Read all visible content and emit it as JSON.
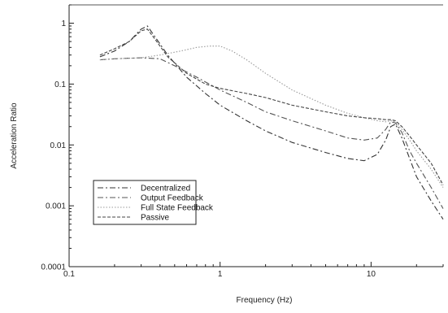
{
  "chart_data": {
    "type": "line",
    "title": "",
    "xlabel": "Frequency (Hz)",
    "ylabel": "Acceleration Ratio",
    "x_scale": "log",
    "y_scale": "log",
    "xlim": [
      0.1,
      30
    ],
    "ylim": [
      0.0001,
      2
    ],
    "x_ticks": [
      0.1,
      1,
      10
    ],
    "x_tick_labels": [
      "0.1",
      "1",
      "10"
    ],
    "y_ticks": [
      0.0001,
      0.001,
      0.01,
      0.1,
      1
    ],
    "y_tick_labels": [
      "0.0001",
      "0.001",
      "0.01",
      "0.1",
      "1"
    ],
    "grid": false,
    "legend_position": "lower-left",
    "series": [
      {
        "name": "Decentralized",
        "color": "#333333",
        "style": "dash-dot",
        "points": [
          [
            0.16,
            0.28
          ],
          [
            0.2,
            0.35
          ],
          [
            0.25,
            0.5
          ],
          [
            0.3,
            0.8
          ],
          [
            0.33,
            0.9
          ],
          [
            0.37,
            0.6
          ],
          [
            0.45,
            0.3
          ],
          [
            0.6,
            0.13
          ],
          [
            0.8,
            0.07
          ],
          [
            1.0,
            0.045
          ],
          [
            1.5,
            0.025
          ],
          [
            2,
            0.017
          ],
          [
            3,
            0.011
          ],
          [
            5,
            0.0075
          ],
          [
            7,
            0.006
          ],
          [
            9,
            0.0055
          ],
          [
            11,
            0.007
          ],
          [
            12.5,
            0.012
          ],
          [
            13.5,
            0.02
          ],
          [
            14.5,
            0.022
          ],
          [
            16,
            0.013
          ],
          [
            18,
            0.006
          ],
          [
            20,
            0.003
          ],
          [
            25,
            0.0012
          ],
          [
            30,
            0.0006
          ]
        ]
      },
      {
        "name": "Output Feedback",
        "color": "#555555",
        "style": "dash-dot",
        "points": [
          [
            0.16,
            0.25
          ],
          [
            0.2,
            0.26
          ],
          [
            0.3,
            0.27
          ],
          [
            0.4,
            0.26
          ],
          [
            0.5,
            0.2
          ],
          [
            0.7,
            0.13
          ],
          [
            1.0,
            0.08
          ],
          [
            1.5,
            0.05
          ],
          [
            2,
            0.035
          ],
          [
            3,
            0.025
          ],
          [
            5,
            0.017
          ],
          [
            7,
            0.013
          ],
          [
            9,
            0.012
          ],
          [
            11,
            0.013
          ],
          [
            12.5,
            0.018
          ],
          [
            13.5,
            0.024
          ],
          [
            14.5,
            0.023
          ],
          [
            16,
            0.016
          ],
          [
            18,
            0.008
          ],
          [
            20,
            0.005
          ],
          [
            25,
            0.002
          ],
          [
            30,
            0.0009
          ]
        ]
      },
      {
        "name": "Full State Feedback",
        "color": "#999999",
        "style": "dotted",
        "points": [
          [
            0.16,
            0.25
          ],
          [
            0.2,
            0.26
          ],
          [
            0.3,
            0.27
          ],
          [
            0.4,
            0.3
          ],
          [
            0.55,
            0.35
          ],
          [
            0.7,
            0.4
          ],
          [
            0.85,
            0.42
          ],
          [
            1.0,
            0.42
          ],
          [
            1.2,
            0.35
          ],
          [
            1.5,
            0.25
          ],
          [
            2,
            0.15
          ],
          [
            3,
            0.08
          ],
          [
            5,
            0.045
          ],
          [
            7,
            0.033
          ],
          [
            9,
            0.028
          ],
          [
            11,
            0.025
          ],
          [
            12.5,
            0.024
          ],
          [
            13.5,
            0.025
          ],
          [
            14.5,
            0.024
          ],
          [
            16,
            0.018
          ],
          [
            18,
            0.012
          ],
          [
            20,
            0.008
          ],
          [
            25,
            0.004
          ],
          [
            30,
            0.002
          ]
        ]
      },
      {
        "name": "Passive",
        "color": "#444444",
        "style": "dashed",
        "points": [
          [
            0.16,
            0.3
          ],
          [
            0.2,
            0.38
          ],
          [
            0.25,
            0.5
          ],
          [
            0.3,
            0.75
          ],
          [
            0.33,
            0.8
          ],
          [
            0.37,
            0.55
          ],
          [
            0.45,
            0.28
          ],
          [
            0.6,
            0.15
          ],
          [
            0.8,
            0.1
          ],
          [
            1.0,
            0.085
          ],
          [
            1.5,
            0.07
          ],
          [
            2,
            0.06
          ],
          [
            3,
            0.045
          ],
          [
            5,
            0.035
          ],
          [
            7,
            0.03
          ],
          [
            9,
            0.028
          ],
          [
            11,
            0.027
          ],
          [
            12.5,
            0.026
          ],
          [
            13.5,
            0.026
          ],
          [
            14.5,
            0.025
          ],
          [
            16,
            0.02
          ],
          [
            18,
            0.014
          ],
          [
            20,
            0.01
          ],
          [
            25,
            0.005
          ],
          [
            30,
            0.0022
          ]
        ]
      }
    ]
  }
}
